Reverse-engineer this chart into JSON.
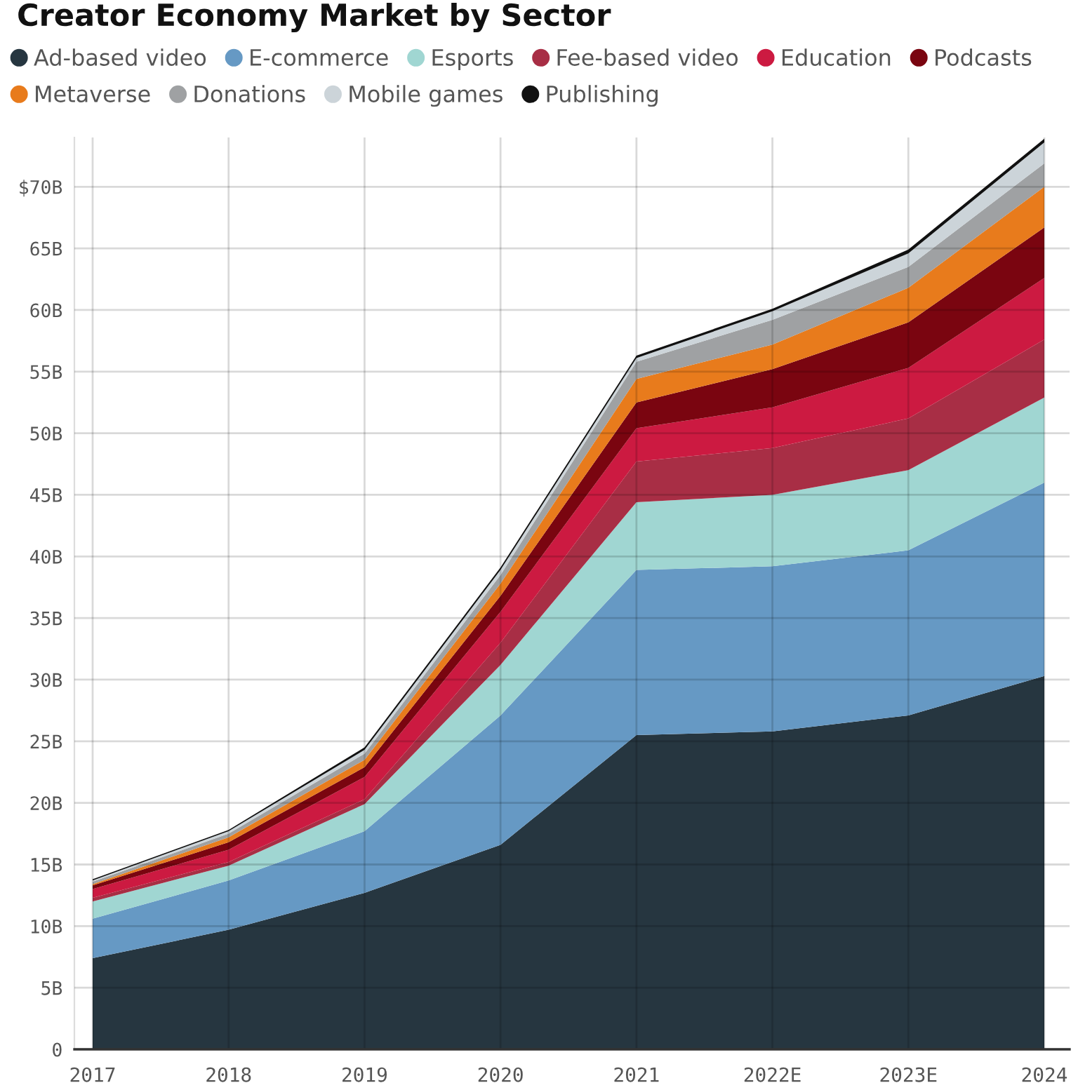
{
  "chart_data": {
    "type": "area",
    "title": "Creator Economy Market by Sector",
    "stacked": true,
    "categories": [
      "2017",
      "2018",
      "2019",
      "2020",
      "2021",
      "2022E",
      "2023E",
      "2024"
    ],
    "series": [
      {
        "name": "Ad-based video",
        "color": "#263640",
        "values": [
          7.4,
          9.7,
          12.7,
          16.6,
          25.5,
          25.8,
          27.1,
          30.3
        ]
      },
      {
        "name": "E-commerce",
        "color": "#6699c4",
        "values": [
          3.2,
          4.0,
          5.0,
          10.5,
          13.4,
          13.4,
          13.4,
          15.7
        ]
      },
      {
        "name": "Esports",
        "color": "#a0d6d2",
        "values": [
          1.4,
          1.2,
          2.2,
          4.1,
          5.5,
          5.8,
          6.5,
          6.9
        ]
      },
      {
        "name": "Fee-based video",
        "color": "#a82e45",
        "values": [
          0.3,
          0.3,
          0.4,
          1.8,
          3.3,
          3.8,
          4.2,
          4.7
        ]
      },
      {
        "name": "Education",
        "color": "#cc1a41",
        "values": [
          0.7,
          1.0,
          1.8,
          2.5,
          2.7,
          3.3,
          4.1,
          5.0
        ]
      },
      {
        "name": "Podcasts",
        "color": "#7a0510",
        "values": [
          0.3,
          0.6,
          0.8,
          1.3,
          2.1,
          3.1,
          3.7,
          4.1
        ]
      },
      {
        "name": "Metaverse",
        "color": "#e87b1c",
        "values": [
          0.1,
          0.4,
          0.6,
          1.0,
          1.9,
          2.0,
          2.8,
          3.3
        ]
      },
      {
        "name": "Donations",
        "color": "#9fa1a3",
        "values": [
          0.2,
          0.3,
          0.5,
          0.7,
          1.4,
          2.0,
          1.7,
          1.9
        ]
      },
      {
        "name": "Mobile games",
        "color": "#ccd4d9",
        "values": [
          0.1,
          0.2,
          0.3,
          0.4,
          0.3,
          0.7,
          1.1,
          1.7
        ]
      },
      {
        "name": "Publishing",
        "color": "#111111",
        "values": [
          0.1,
          0.1,
          0.2,
          0.2,
          0.2,
          0.2,
          0.3,
          0.3
        ]
      }
    ],
    "ylim": [
      0,
      74
    ],
    "yticks": [
      0,
      {
        "value": 5,
        "label": "5B"
      },
      {
        "value": 10,
        "label": "10B"
      },
      {
        "value": 15,
        "label": "15B"
      },
      {
        "value": 20,
        "label": "20B"
      },
      {
        "value": 25,
        "label": "25B"
      },
      {
        "value": 30,
        "label": "30B"
      },
      {
        "value": 35,
        "label": "35B"
      },
      {
        "value": 40,
        "label": "40B"
      },
      {
        "value": 45,
        "label": "45B"
      },
      {
        "value": 50,
        "label": "50B"
      },
      {
        "value": 55,
        "label": "55B"
      },
      {
        "value": 60,
        "label": "60B"
      },
      {
        "value": 65,
        "label": "65B"
      },
      {
        "value": 70,
        "label": "$70B"
      }
    ],
    "grid": true,
    "legend": "top left"
  }
}
